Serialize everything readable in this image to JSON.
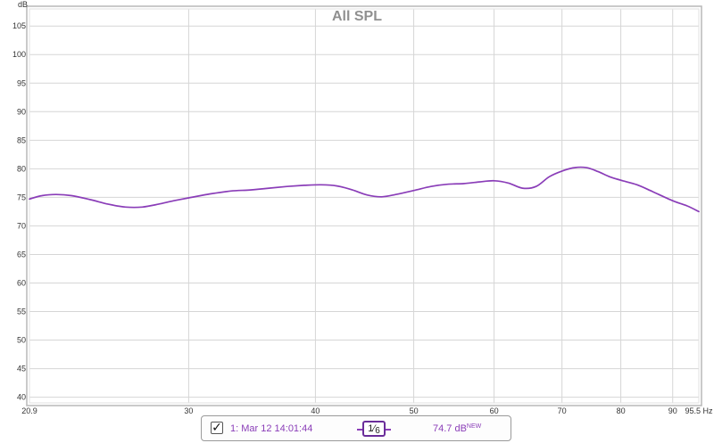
{
  "chart_data": {
    "type": "line",
    "title": "All SPL",
    "ylabel": "dB",
    "xunit": "Hz",
    "xscale": "log",
    "xlim": [
      20.9,
      95.5
    ],
    "ylim": [
      39,
      108
    ],
    "yticks": [
      40,
      45,
      50,
      55,
      60,
      65,
      70,
      75,
      80,
      85,
      90,
      95,
      100,
      105
    ],
    "ytick_labels": [
      "40",
      "45",
      "50",
      "55",
      "60",
      "65",
      "70",
      "75",
      "80",
      "85",
      "90",
      "95",
      "100",
      "105"
    ],
    "xticks": [
      20.9,
      30,
      40,
      50,
      60,
      70,
      80,
      90,
      95.5
    ],
    "xtick_labels": [
      "20.9",
      "30",
      "40",
      "50",
      "60",
      "70",
      "80",
      "90",
      "95.5 Hz"
    ],
    "grid": true,
    "series": [
      {
        "name": "1: Mar 12 14:01:44",
        "color": "#8a3db8",
        "x": [
          20.9,
          21.5,
          22.2,
          23.0,
          24.0,
          25.0,
          26.0,
          27.0,
          28.0,
          29.0,
          30.0,
          31.5,
          33.0,
          34.5,
          36.0,
          37.5,
          39.0,
          40.5,
          42.0,
          43.5,
          45.0,
          46.5,
          48.0,
          50.0,
          52.0,
          54.0,
          56.0,
          58.0,
          60.0,
          62.0,
          64.0,
          66.0,
          68.0,
          70.0,
          72.0,
          74.0,
          76.0,
          78.0,
          80.0,
          83.0,
          86.0,
          90.0,
          93.0,
          95.5
        ],
        "y": [
          74.7,
          75.3,
          75.5,
          75.3,
          74.6,
          73.8,
          73.3,
          73.3,
          73.8,
          74.4,
          74.9,
          75.6,
          76.1,
          76.3,
          76.6,
          76.9,
          77.1,
          77.2,
          77.0,
          76.3,
          75.4,
          75.1,
          75.5,
          76.2,
          76.9,
          77.3,
          77.4,
          77.7,
          77.9,
          77.5,
          76.6,
          76.9,
          78.6,
          79.6,
          80.2,
          80.2,
          79.5,
          78.6,
          78.0,
          77.2,
          76.0,
          74.4,
          73.5,
          72.5
        ]
      }
    ]
  },
  "legend": {
    "checked_glyph": "✓",
    "series_label": "1: Mar 12 14:01:44",
    "smoothing_num": "1",
    "smoothing_den": "6",
    "value": "74.7 dB",
    "value_sup": "NEW"
  }
}
